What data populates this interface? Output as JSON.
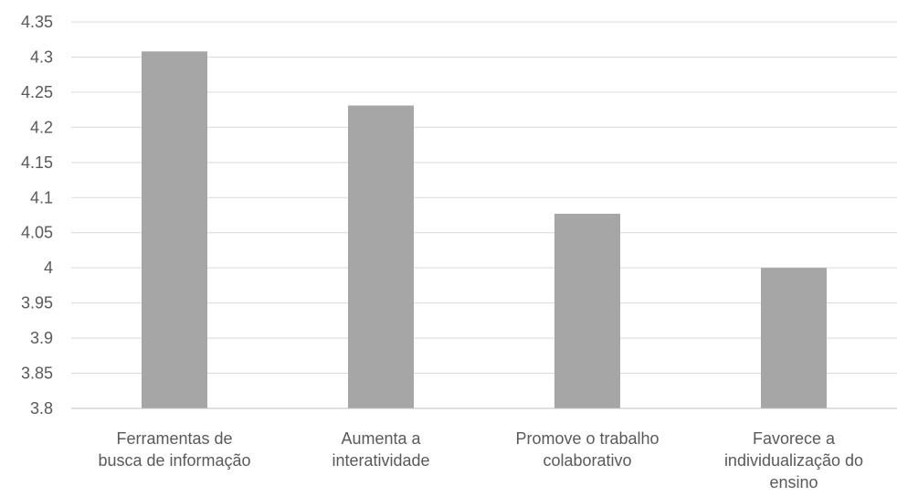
{
  "chart_data": {
    "type": "bar",
    "categories": [
      [
        "Ferramentas de",
        "busca de informação"
      ],
      [
        "Aumenta a",
        "interatividade"
      ],
      [
        "Promove o trabalho",
        "colaborativo"
      ],
      [
        "Favorece a",
        "individualização do",
        "ensino"
      ]
    ],
    "values": [
      4.308,
      4.231,
      4.077,
      4.0
    ],
    "ylim": [
      3.8,
      4.35
    ],
    "yticks": [
      "4.35",
      "4.3",
      "4.25",
      "4.2",
      "4.15",
      "4.1",
      "4.05",
      "4",
      "3.95",
      "3.9",
      "3.85",
      "3.8"
    ],
    "grid": true,
    "bar_color": "#a6a6a6",
    "title": "",
    "xlabel": "",
    "ylabel": ""
  }
}
